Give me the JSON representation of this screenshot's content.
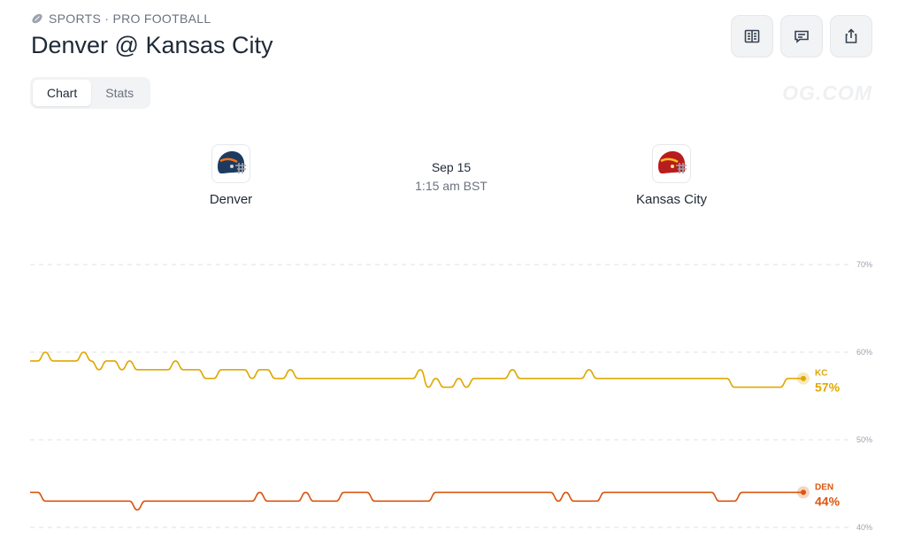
{
  "header": {
    "breadcrumb": "SPORTS · PRO FOOTBALL",
    "title": "Denver @ Kansas City"
  },
  "actions": [
    {
      "name": "book-button",
      "icon": "book-icon"
    },
    {
      "name": "comment-button",
      "icon": "comment-icon"
    },
    {
      "name": "share-button",
      "icon": "share-icon"
    }
  ],
  "tabs": [
    {
      "label": "Chart",
      "active": true
    },
    {
      "label": "Stats",
      "active": false
    }
  ],
  "watermark": "OG.COM",
  "game": {
    "date": "Sep 15",
    "time": "1:15 am BST",
    "away": {
      "name": "Denver",
      "abbr": "DEN",
      "color": "#1e3a5f"
    },
    "home": {
      "name": "Kansas City",
      "abbr": "KC",
      "color": "#b91c1c"
    }
  },
  "chart_data": {
    "type": "line",
    "yticks": [
      "70%",
      "60%",
      "50%",
      "40%"
    ],
    "ylim": [
      40,
      70
    ],
    "series": [
      {
        "name": "KC",
        "label": "57%",
        "color": "#e0a800",
        "values": [
          59,
          59,
          60,
          59,
          59,
          59,
          59,
          60,
          59,
          58,
          59,
          59,
          58,
          59,
          58,
          58,
          58,
          58,
          58,
          59,
          58,
          58,
          58,
          57,
          57,
          58,
          58,
          58,
          58,
          57,
          58,
          58,
          57,
          57,
          58,
          57,
          57,
          57,
          57,
          57,
          57,
          57,
          57,
          57,
          57,
          57,
          57,
          57,
          57,
          57,
          57,
          58,
          56,
          57,
          56,
          56,
          57,
          56,
          57,
          57,
          57,
          57,
          57,
          58,
          57,
          57,
          57,
          57,
          57,
          57,
          57,
          57,
          57,
          58,
          57,
          57,
          57,
          57,
          57,
          57,
          57,
          57,
          57,
          57,
          57,
          57,
          57,
          57,
          57,
          57,
          57,
          57,
          56,
          56,
          56,
          56,
          56,
          56,
          56,
          57,
          57,
          57
        ]
      },
      {
        "name": "DEN",
        "label": "44%",
        "color": "#d9560f",
        "values": [
          44,
          44,
          43,
          43,
          43,
          43,
          43,
          43,
          43,
          43,
          43,
          43,
          43,
          43,
          42,
          43,
          43,
          43,
          43,
          43,
          43,
          43,
          43,
          43,
          43,
          43,
          43,
          43,
          43,
          43,
          44,
          43,
          43,
          43,
          43,
          43,
          44,
          43,
          43,
          43,
          43,
          44,
          44,
          44,
          44,
          43,
          43,
          43,
          43,
          43,
          43,
          43,
          43,
          44,
          44,
          44,
          44,
          44,
          44,
          44,
          44,
          44,
          44,
          44,
          44,
          44,
          44,
          44,
          44,
          43,
          44,
          43,
          43,
          43,
          43,
          44,
          44,
          44,
          44,
          44,
          44,
          44,
          44,
          44,
          44,
          44,
          44,
          44,
          44,
          44,
          43,
          43,
          43,
          44,
          44,
          44,
          44,
          44,
          44,
          44,
          44,
          44
        ]
      }
    ]
  }
}
